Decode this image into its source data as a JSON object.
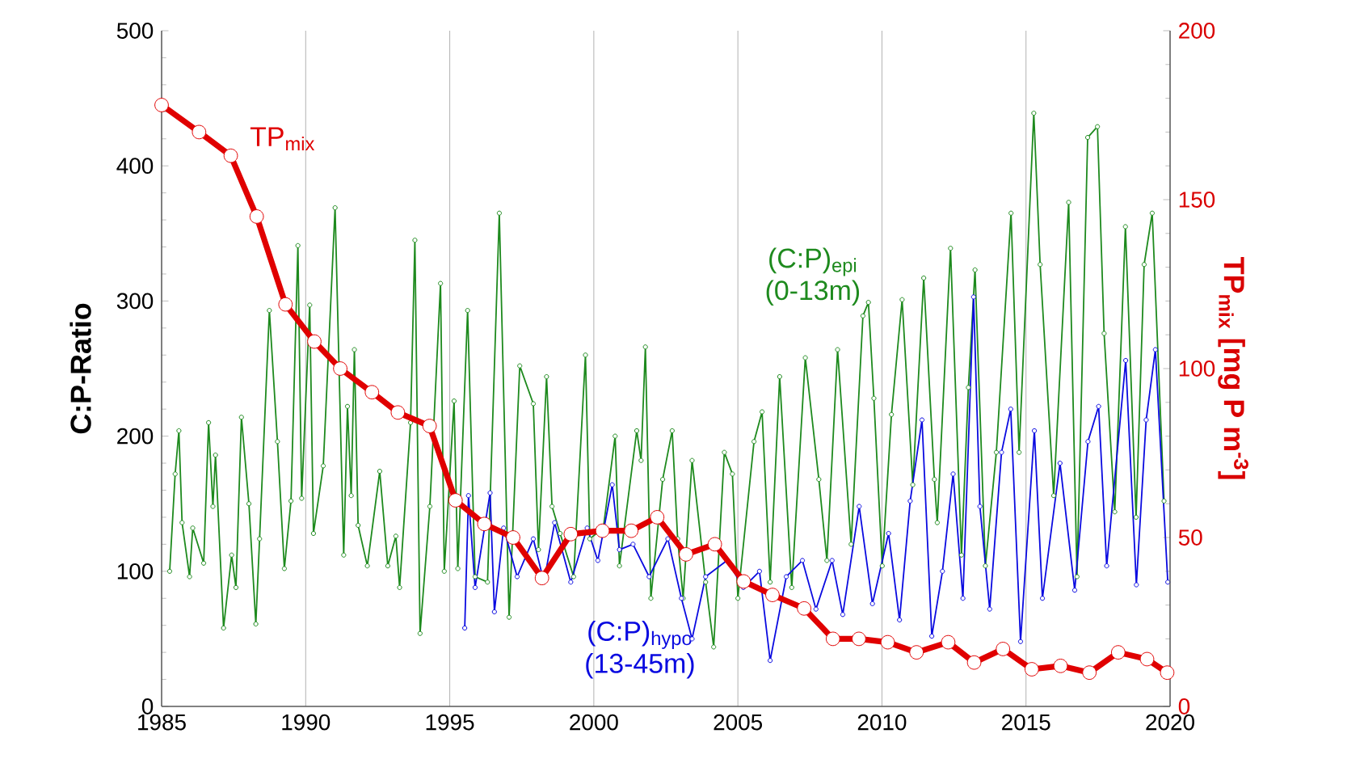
{
  "chart_data": {
    "type": "line",
    "ylabel": "C:P-Ratio",
    "y2label": "TP$_{mix}$  [mg P m$^{-3}$]",
    "xlim": [
      1985,
      2020
    ],
    "xticks": [
      1985,
      1990,
      1995,
      2000,
      2005,
      2010,
      2015,
      2020
    ],
    "ylim": [
      0,
      500
    ],
    "yticks": [
      0,
      100,
      200,
      300,
      400,
      500
    ],
    "y2lim": [
      0,
      200
    ],
    "y2ticks": [
      0,
      50,
      100,
      150,
      200
    ],
    "grid": "x",
    "marker": "circle",
    "line_style": "solid",
    "series": [
      {
        "name": "(C:P)$_{epi}$ (0-13m)",
        "color": "#1e8a1e",
        "x": [
          1985.28,
          1985.47,
          1985.6,
          1985.71,
          1985.97,
          1986.08,
          1986.46,
          1986.63,
          1986.78,
          1986.87,
          1987.15,
          1987.43,
          1987.58,
          1987.77,
          1988.03,
          1988.27,
          1988.4,
          1988.74,
          1989.02,
          1989.26,
          1989.49,
          1989.73,
          1989.86,
          1990.14,
          1990.27,
          1990.61,
          1991.02,
          1991.32,
          1991.45,
          1991.58,
          1991.69,
          1991.82,
          1992.14,
          1992.57,
          1992.85,
          1993.13,
          1993.26,
          1993.64,
          1993.79,
          1993.97,
          1994.31,
          1994.68,
          1994.81,
          1995.15,
          1995.28,
          1995.62,
          1995.88,
          1996.31,
          1996.72,
          1997.06,
          1997.43,
          1997.9,
          1998.08,
          1998.36,
          1998.55,
          1998.83,
          1999.3,
          1999.71,
          1999.86,
          2000.33,
          2000.74,
          2000.89,
          2001.49,
          2001.64,
          2001.79,
          2001.98,
          2002.39,
          2002.72,
          2002.91,
          2003.1,
          2003.41,
          2003.88,
          2004.16,
          2004.53,
          2004.81,
          2005.0,
          2005.56,
          2005.84,
          2006.12,
          2006.45,
          2006.87,
          2007.34,
          2007.81,
          2008.09,
          2008.46,
          2008.93,
          2009.34,
          2009.53,
          2009.72,
          2010.01,
          2010.33,
          2010.7,
          2011.07,
          2011.45,
          2011.82,
          2011.92,
          2012.38,
          2012.76,
          2013.0,
          2013.23,
          2013.59,
          2013.97,
          2014.48,
          2014.76,
          2015.27,
          2015.49,
          2015.96,
          2016.48,
          2016.77,
          2017.14,
          2017.48,
          2017.71,
          2018.08,
          2018.45,
          2018.82,
          2019.1,
          2019.38,
          2019.79
        ],
        "values": [
          100,
          172,
          204,
          136,
          96,
          132,
          106,
          210,
          148,
          186,
          58,
          112,
          88,
          214,
          150,
          61,
          124,
          293,
          196,
          102,
          152,
          341,
          154,
          297,
          128,
          178,
          369,
          112,
          222,
          156,
          264,
          134,
          104,
          174,
          104,
          126,
          88,
          210,
          345,
          54,
          148,
          313,
          100,
          226,
          102,
          293,
          96,
          92,
          365,
          66,
          252,
          224,
          116,
          244,
          148,
          128,
          96,
          260,
          124,
          132,
          200,
          104,
          204,
          182,
          266,
          80,
          168,
          204,
          124,
          80,
          182,
          92,
          44,
          188,
          172,
          80,
          196,
          218,
          92,
          244,
          88,
          258,
          168,
          108,
          264,
          120,
          289,
          299,
          228,
          104,
          216,
          301,
          164,
          317,
          168,
          136,
          339,
          112,
          236,
          323,
          104,
          188,
          365,
          188,
          439,
          327,
          156,
          373,
          96,
          421,
          429,
          276,
          144,
          355,
          140,
          327,
          365,
          152
        ]
      },
      {
        "name": "(C:P)$_{hypo}$ (13-45m)",
        "color": "#0a0ae0",
        "x": [
          1995.52,
          1995.65,
          1995.88,
          1996.4,
          1996.55,
          1996.87,
          1997.34,
          1997.9,
          1998.27,
          1998.64,
          1999.2,
          1999.77,
          2000.14,
          2000.64,
          2000.89,
          2001.36,
          2001.92,
          2002.57,
          2003.04,
          2003.41,
          2003.88,
          2004.62,
          2005.19,
          2005.75,
          2006.12,
          2006.68,
          2007.24,
          2007.71,
          2008.27,
          2008.64,
          2009.21,
          2009.67,
          2010.23,
          2010.61,
          2010.98,
          2011.39,
          2011.73,
          2012.1,
          2012.47,
          2012.81,
          2013.18,
          2013.4,
          2013.74,
          2014.15,
          2014.47,
          2014.81,
          2015.29,
          2015.57,
          2016.18,
          2016.69,
          2017.15,
          2017.52,
          2017.8,
          2018.46,
          2018.83,
          2019.17,
          2019.49,
          2019.92
        ],
        "values": [
          58,
          156,
          88,
          158,
          70,
          132,
          96,
          124,
          92,
          136,
          92,
          132,
          108,
          164,
          116,
          120,
          96,
          124,
          80,
          50,
          96,
          108,
          88,
          100,
          34,
          96,
          108,
          72,
          108,
          68,
          148,
          76,
          128,
          64,
          152,
          212,
          52,
          100,
          172,
          80,
          303,
          148,
          72,
          188,
          220,
          48,
          204,
          80,
          180,
          86,
          196,
          222,
          104,
          256,
          90,
          212,
          264,
          92
        ]
      },
      {
        "name": "TP$_{mix}$",
        "color": "#e00000",
        "axis": "y2",
        "x": [
          1985.0,
          1986.3,
          1987.4,
          1988.3,
          1989.3,
          1990.3,
          1991.2,
          1992.3,
          1993.2,
          1994.3,
          1995.2,
          1996.2,
          1997.2,
          1998.2,
          1999.2,
          2000.3,
          2001.3,
          2002.2,
          2003.2,
          2004.2,
          2005.2,
          2006.2,
          2007.3,
          2008.3,
          2009.2,
          2010.2,
          2011.2,
          2012.3,
          2013.2,
          2014.2,
          2015.2,
          2016.2,
          2017.2,
          2018.2,
          2019.2,
          2019.9
        ],
        "values": [
          178,
          170,
          163,
          145,
          119,
          108,
          100,
          93,
          87,
          83,
          61,
          54,
          50,
          38,
          51,
          52,
          52,
          56,
          45,
          48,
          37,
          33,
          29,
          20,
          20,
          19,
          16,
          19,
          13,
          17,
          11,
          12,
          10,
          16,
          14,
          10
        ]
      }
    ]
  }
}
